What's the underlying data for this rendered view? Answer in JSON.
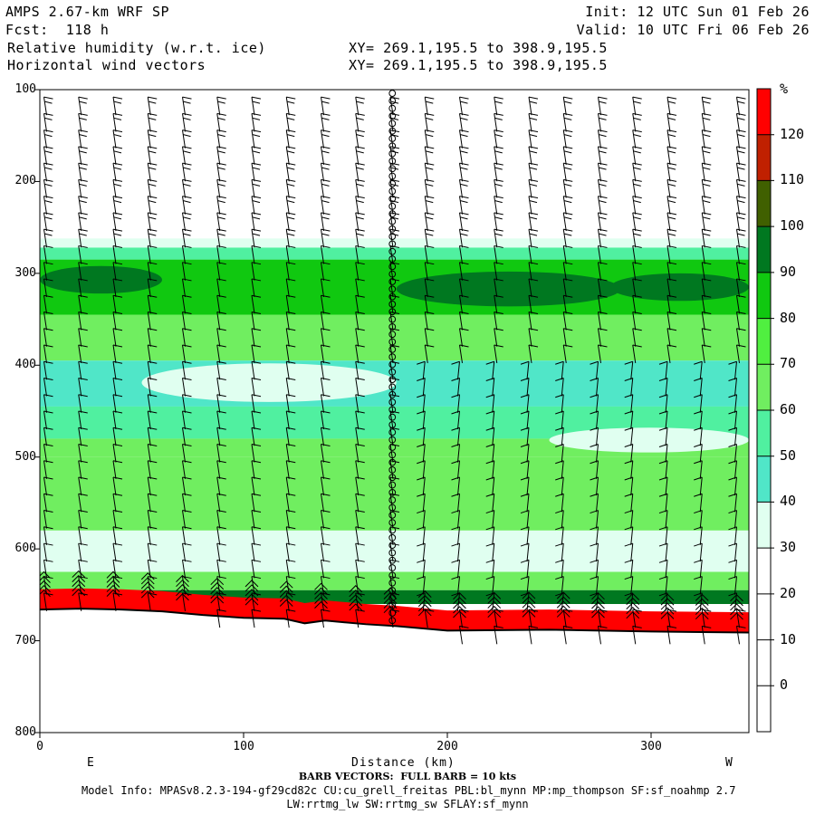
{
  "header": {
    "model": "AMPS 2.67-km WRF SP",
    "fcst": "Fcst:  118 h",
    "field1": "Relative humidity (w.r.t. ice)",
    "field2": "Horizontal wind vectors",
    "xy1": "XY= 269.1,195.5 to 398.9,195.5",
    "xy2": "XY= 269.1,195.5 to 398.9,195.5",
    "init": "Init: 12 UTC Sun 01 Feb 26",
    "valid": "Valid: 10 UTC Fri 06 Feb 26"
  },
  "footer": {
    "barb": "BARB VECTORS:  FULL BARB = 10 kts",
    "model_info": "Model Info: MPASv8.2.3-194-gf29cd82c CU:cu_grell_freitas PBL:bl_mynn MP:mp_thompson SF:sf_noahmp 2.7",
    "model_info2": "LW:rrtmg_lw SW:rrtmg_sw SFLAY:sf_mynn"
  },
  "chart_data": {
    "type": "heatmap",
    "xlabel": "Distance (km)",
    "x_range": [
      0,
      348
    ],
    "x_ticks": [
      0,
      100,
      200,
      300
    ],
    "x_tick_labels": [
      "0",
      "100",
      "200",
      "300"
    ],
    "x_end_labels": {
      "left": "E",
      "right": "W"
    },
    "ylabel": "",
    "y_range": [
      100,
      800
    ],
    "y_reversed": true,
    "y_ticks": [
      100,
      200,
      300,
      400,
      500,
      600,
      700,
      800
    ],
    "y_tick_labels": [
      "100",
      "200",
      "300",
      "400",
      "500",
      "600",
      "700",
      "800"
    ],
    "colorbar": {
      "unit": "%",
      "levels": [
        0,
        10,
        20,
        30,
        40,
        50,
        60,
        70,
        80,
        90,
        100,
        110,
        120
      ],
      "level_labels": [
        "0",
        "10",
        "20",
        "30",
        "40",
        "50",
        "60",
        "70",
        "80",
        "90",
        "100",
        "110",
        "120"
      ],
      "bins": [
        {
          "from": 30,
          "to": 40,
          "color": "#e0fff0"
        },
        {
          "from": 40,
          "to": 50,
          "color": "#50e6c8"
        },
        {
          "from": 50,
          "to": 60,
          "color": "#50f0a0"
        },
        {
          "from": 60,
          "to": 70,
          "color": "#70ee60"
        },
        {
          "from": 70,
          "to": 80,
          "color": "#50ef40"
        },
        {
          "from": 80,
          "to": 90,
          "color": "#10c810"
        },
        {
          "from": 90,
          "to": 100,
          "color": "#007820"
        },
        {
          "from": 100,
          "to": 110,
          "color": "#406000"
        },
        {
          "from": 110,
          "to": 120,
          "color": "#c02000"
        },
        {
          "from": 120,
          "to": 130,
          "color": "#ff0000"
        }
      ]
    },
    "rh_layers": [
      {
        "p_top": 262,
        "p_bot": 272,
        "rh": 35
      },
      {
        "p_top": 272,
        "p_bot": 285,
        "rh": 55
      },
      {
        "p_top": 285,
        "p_bot": 345,
        "rh": 80
      },
      {
        "p_top": 345,
        "p_bot": 395,
        "rh": 65
      },
      {
        "p_top": 395,
        "p_bot": 445,
        "rh": 45
      },
      {
        "p_top": 445,
        "p_bot": 480,
        "rh": 55
      },
      {
        "p_top": 480,
        "p_bot": 500,
        "rh": 65
      },
      {
        "p_top": 500,
        "p_bot": 580,
        "rh": 60
      },
      {
        "p_top": 580,
        "p_bot": 625,
        "rh": 35
      },
      {
        "p_top": 625,
        "p_bot": 645,
        "rh": 60
      },
      {
        "p_top": 645,
        "p_bot": 660,
        "rh": 90
      }
    ],
    "rh_features": [
      {
        "x0": 0,
        "x1": 60,
        "p0": 292,
        "p1": 322,
        "rh": 95
      },
      {
        "x0": 175,
        "x1": 285,
        "p0": 298,
        "p1": 336,
        "rh": 95
      },
      {
        "x0": 280,
        "x1": 348,
        "p0": 300,
        "p1": 330,
        "rh": 92
      },
      {
        "x0": 50,
        "x1": 175,
        "p0": 398,
        "p1": 440,
        "rh": 35
      },
      {
        "x0": 250,
        "x1": 348,
        "p0": 468,
        "p1": 495,
        "rh": 35
      }
    ],
    "terrain": {
      "x": [
        0,
        20,
        40,
        60,
        80,
        100,
        120,
        130,
        140,
        160,
        175,
        200,
        250,
        300,
        348
      ],
      "p": [
        666,
        665,
        666,
        668,
        672,
        675,
        676,
        681,
        678,
        682,
        684,
        689,
        688,
        690,
        691
      ]
    },
    "surface_layer_p": 22,
    "calm_column_km": 173,
    "wind_barb_spacing_km": 17
  }
}
